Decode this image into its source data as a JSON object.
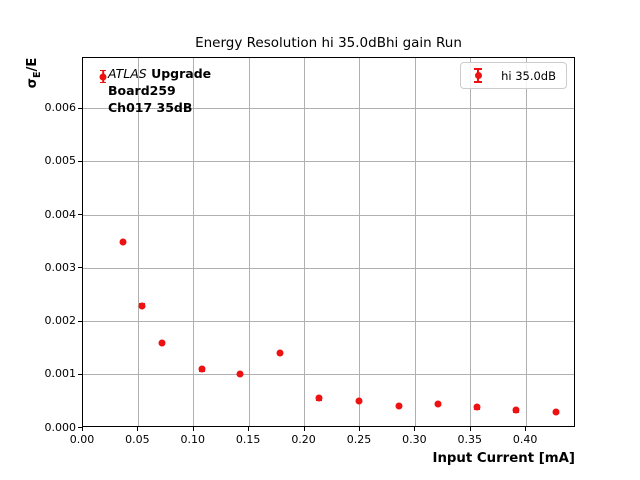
{
  "chart_data": {
    "type": "scatter",
    "title": "Energy Resolution hi 35.0dBhi gain Run",
    "xlabel": "Input Current [mA]",
    "ylabel": "σE/E",
    "ylabel_parts": {
      "sigma": "σ",
      "sub": "E",
      "rest": "/E"
    },
    "xlim": [
      0,
      0.445
    ],
    "ylim": [
      0,
      0.00695
    ],
    "xticks": [
      "0.00",
      "0.05",
      "0.10",
      "0.15",
      "0.20",
      "0.25",
      "0.30",
      "0.35",
      "0.40"
    ],
    "yticks": [
      "0.000",
      "0.001",
      "0.002",
      "0.003",
      "0.004",
      "0.005",
      "0.006"
    ],
    "grid": true,
    "grid_color": "#b0b0b0",
    "marker_color": "#ee1111",
    "legend": {
      "label": "hi 35.0dB",
      "position": "upper right",
      "marker": "errorbar-dot"
    },
    "annotation": {
      "line1_italic": "ATLAS",
      "line1_bold": " Upgrade",
      "line2": "Board259",
      "line3": "Ch017 35dB"
    },
    "series": [
      {
        "name": "hi 35.0dB",
        "x": [
          0.018,
          0.036,
          0.053,
          0.071,
          0.107,
          0.142,
          0.178,
          0.213,
          0.249,
          0.285,
          0.32,
          0.356,
          0.391,
          0.427
        ],
        "y": [
          0.0066,
          0.0035,
          0.0023,
          0.0016,
          0.0011,
          0.00102,
          0.00141,
          0.00056,
          0.00051,
          0.00042,
          0.00045,
          0.00039,
          0.00033,
          0.0003
        ],
        "yerr": [
          0.00012,
          4e-05,
          4e-05,
          4e-05,
          4e-05,
          4e-05,
          4e-05,
          4e-05,
          4e-05,
          4e-05,
          4e-05,
          4e-05,
          4e-05,
          4e-05
        ]
      }
    ]
  }
}
